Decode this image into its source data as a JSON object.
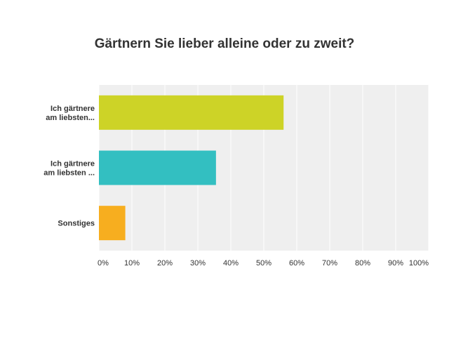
{
  "chart_data": {
    "type": "bar",
    "orientation": "horizontal",
    "title": "Gärtnern Sie lieber alleine oder zu zweit?",
    "categories": [
      "Ich gärtnere am liebsten...",
      "Ich gärtnere am liebsten ...",
      "Sonstiges"
    ],
    "values": [
      56,
      35.5,
      8
    ],
    "unit": "%",
    "xlim": [
      0,
      100
    ],
    "ticks": [
      "0%",
      "10%",
      "20%",
      "30%",
      "40%",
      "50%",
      "60%",
      "70%",
      "80%",
      "90%",
      "100%"
    ],
    "grid": true,
    "colors": [
      "#cdd327",
      "#33bfc1",
      "#f7ae1f"
    ],
    "background": "#efefef",
    "grid_color": "#ffffff"
  }
}
